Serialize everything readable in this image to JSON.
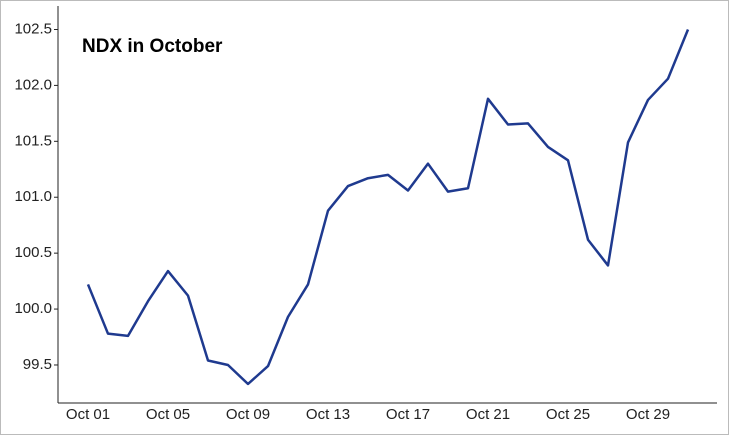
{
  "chart_data": {
    "type": "line",
    "title": "NDX in October",
    "categories": [
      "Oct 01",
      null,
      null,
      null,
      "Oct 05",
      null,
      null,
      null,
      "Oct 09",
      null,
      null,
      null,
      "Oct 13",
      null,
      null,
      null,
      "Oct 17",
      null,
      null,
      null,
      "Oct 21",
      null,
      null,
      null,
      "Oct 25",
      null,
      null,
      null,
      "Oct 29",
      null,
      null
    ],
    "series": [
      {
        "name": "NDX",
        "color": "#1f3a8f",
        "values": [
          100.22,
          99.78,
          99.76,
          100.07,
          100.34,
          100.12,
          99.54,
          99.5,
          99.33,
          99.49,
          99.93,
          100.22,
          100.88,
          101.1,
          101.17,
          101.2,
          101.06,
          101.3,
          101.05,
          101.08,
          101.88,
          101.65,
          101.66,
          101.45,
          101.33,
          100.62,
          100.39,
          101.49,
          101.87,
          102.06,
          102.5
        ]
      }
    ],
    "ylim": [
      99.16,
      102.71
    ],
    "yticks": [
      99.5,
      {
        "value": 100,
        "label": "100.0"
      },
      100.5,
      {
        "value": 101,
        "label": "101.0"
      },
      101.5,
      {
        "value": 102,
        "label": "102.0"
      },
      102.5
    ],
    "grid": false
  }
}
